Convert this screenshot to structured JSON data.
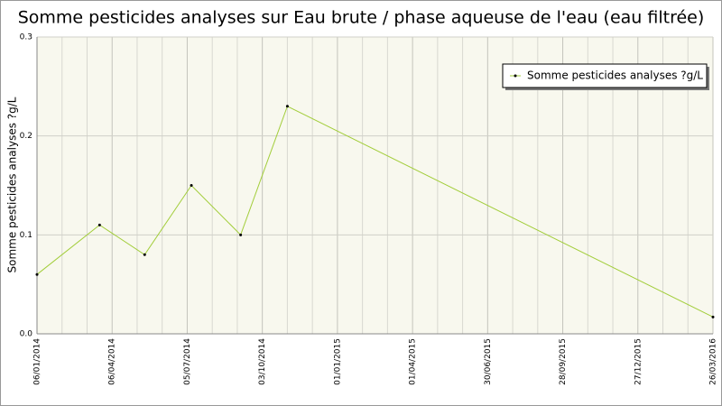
{
  "chart_data": {
    "type": "line",
    "title": "Somme pesticides analyses sur Eau brute / phase aqueuse de l'eau (eau filtrée)",
    "y_label": "Somme pesticides analyses ?g/L",
    "x": [
      "06/01/2014",
      "22/03/2014",
      "15/05/2014",
      "10/07/2014",
      "07/09/2014",
      "02/11/2014",
      "26/03/2016"
    ],
    "series": [
      {
        "name": "Somme pesticides analyses ?g/L",
        "color": "#a2cd3a",
        "values": [
          0.06,
          0.11,
          0.08,
          0.15,
          0.1,
          0.23,
          0.017
        ]
      }
    ],
    "xlim": [
      "06/01/2014",
      "26/03/2016"
    ],
    "xticks": [
      "06/01/2014",
      "06/04/2014",
      "05/07/2014",
      "03/10/2014",
      "01/01/2015",
      "01/04/2015",
      "30/06/2015",
      "28/09/2015",
      "27/12/2015",
      "26/03/2016"
    ],
    "ylim": [
      0,
      0.3
    ],
    "yticks": [
      {
        "value": 0,
        "label": "0.0"
      },
      0.1,
      0.2,
      0.3
    ],
    "grid": true,
    "legend": "top-right"
  }
}
